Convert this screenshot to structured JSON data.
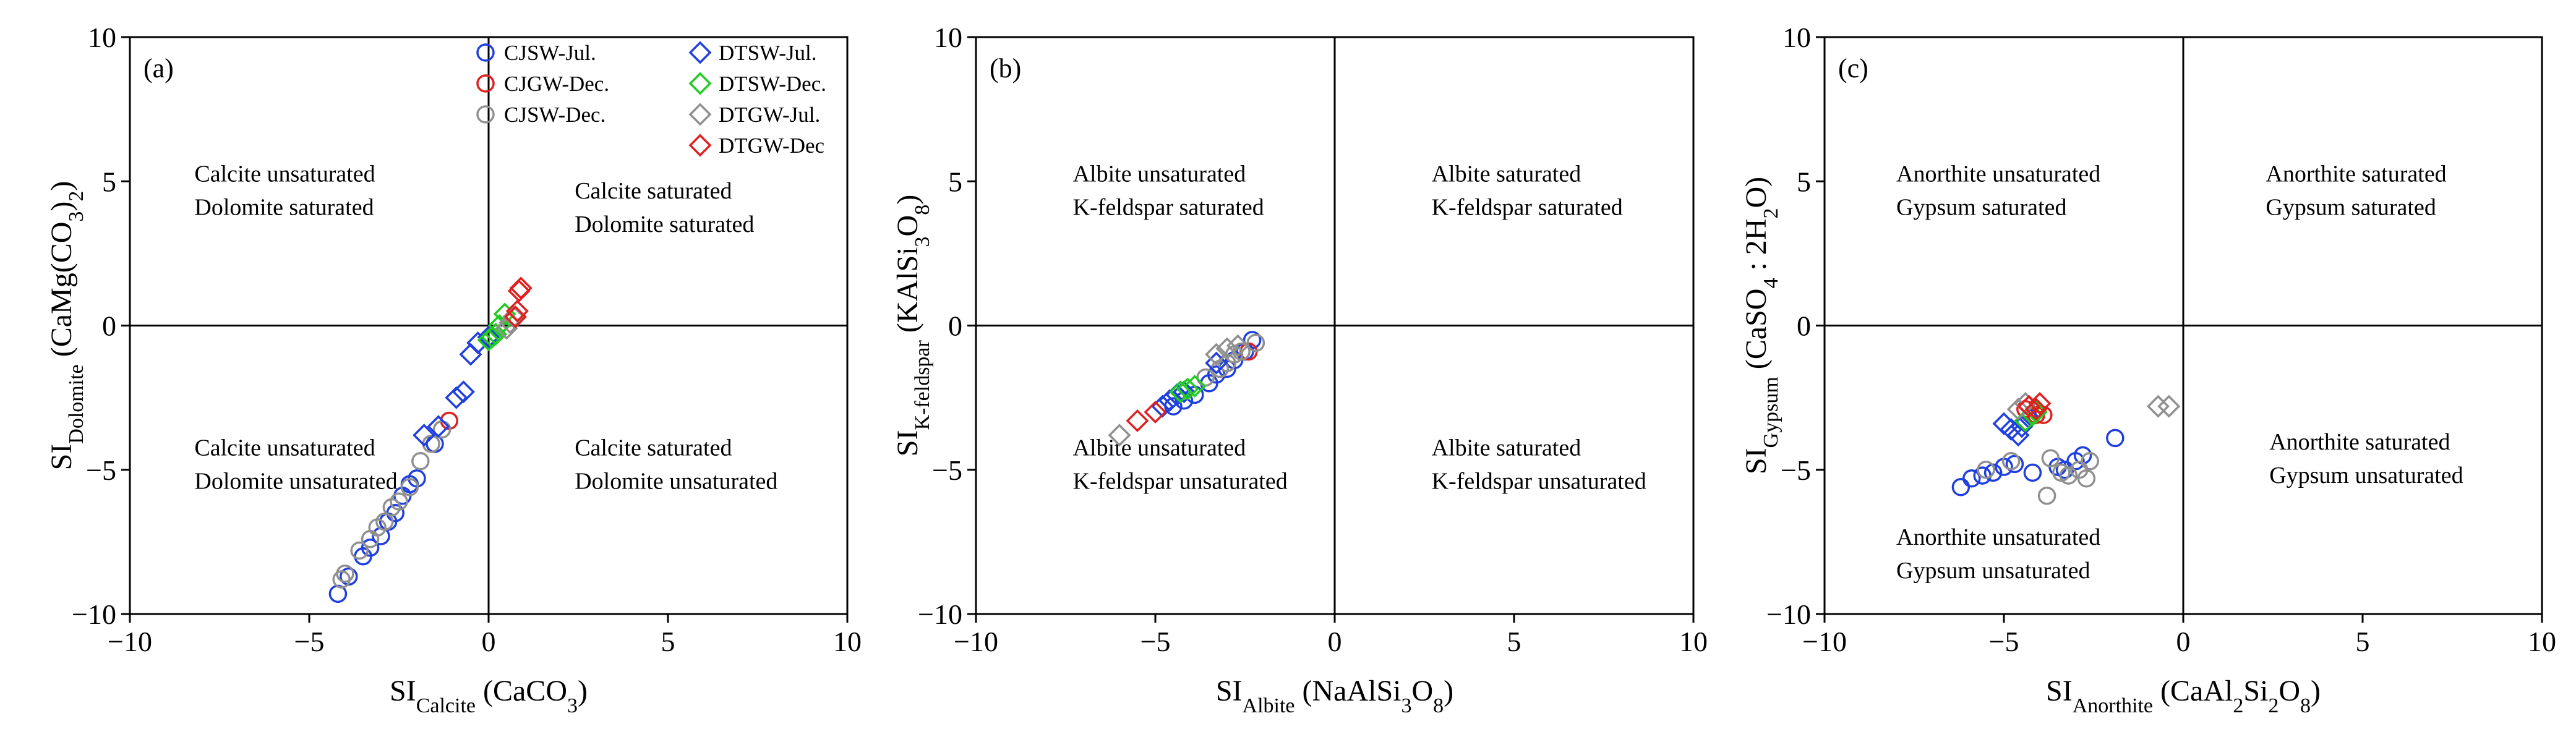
{
  "legend": [
    {
      "name": "CJSW-Jul.",
      "marker": "circle",
      "color": "#1f3fe0"
    },
    {
      "name": "CJGW-Dec.",
      "marker": "circle",
      "color": "#e01f1f"
    },
    {
      "name": "CJSW-Dec.",
      "marker": "circle",
      "color": "#909090"
    },
    {
      "name": "DTSW-Jul.",
      "marker": "diamond",
      "color": "#1f3fe0"
    },
    {
      "name": "DTSW-Dec.",
      "marker": "diamond",
      "color": "#20cc20"
    },
    {
      "name": "DTGW-Jul.",
      "marker": "diamond",
      "color": "#909090"
    },
    {
      "name": "DTGW-Dec",
      "marker": "diamond",
      "color": "#e01f1f"
    }
  ],
  "chart_data": [
    {
      "type": "scatter",
      "panel_label": "(a)",
      "xlabel": {
        "base": "SI",
        "sub": "Calcite",
        "rest": " (CaCO",
        "sub2": "3",
        "tail": ")"
      },
      "ylabel": {
        "base": "SI",
        "sub": "Dolomite",
        "rest": " (CaMg(CO",
        "sub2": "3",
        "mid": ")",
        "sub3": "2",
        "tail": ")"
      },
      "xlim": [
        -10,
        10
      ],
      "ylim": [
        -10,
        10
      ],
      "xticks": [
        "−10",
        "−5",
        "0",
        "5",
        "10"
      ],
      "yticks": [
        "−10",
        "−5",
        "0",
        "5",
        "10"
      ],
      "quadrants": {
        "top_left": [
          "Calcite unsaturated",
          "Dolomite saturated"
        ],
        "top_right": [
          "Calcite saturated",
          "Dolomite saturated"
        ],
        "bottom_left": [
          "Calcite unsaturated",
          "Dolomite unsaturated"
        ],
        "bottom_right": [
          "Calcite saturated",
          "Dolomite unsaturated"
        ]
      },
      "series": [
        {
          "name": "CJSW-Jul.",
          "points": [
            [
              -4.2,
              -9.3
            ],
            [
              -3.9,
              -8.7
            ],
            [
              -3.5,
              -8.0
            ],
            [
              -3.3,
              -7.7
            ],
            [
              -3.0,
              -7.3
            ],
            [
              -2.8,
              -6.8
            ],
            [
              -2.6,
              -6.5
            ],
            [
              -2.4,
              -5.9
            ],
            [
              -2.2,
              -5.5
            ],
            [
              -2.0,
              -5.3
            ],
            [
              -1.5,
              -4.1
            ]
          ]
        },
        {
          "name": "CJGW-Dec.",
          "points": [
            [
              -1.1,
              -3.3
            ]
          ]
        },
        {
          "name": "CJSW-Dec.",
          "points": [
            [
              -4.1,
              -8.8
            ],
            [
              -4.0,
              -8.6
            ],
            [
              -3.6,
              -7.8
            ],
            [
              -3.3,
              -7.4
            ],
            [
              -3.1,
              -7.0
            ],
            [
              -2.9,
              -6.8
            ],
            [
              -2.7,
              -6.3
            ],
            [
              -2.5,
              -6.1
            ],
            [
              -2.2,
              -5.6
            ],
            [
              -1.9,
              -4.7
            ],
            [
              -1.6,
              -4.1
            ],
            [
              -1.3,
              -3.6
            ]
          ]
        },
        {
          "name": "DTSW-Jul.",
          "points": [
            [
              -1.8,
              -3.8
            ],
            [
              -1.4,
              -3.5
            ],
            [
              -0.9,
              -2.5
            ],
            [
              -0.7,
              -2.3
            ],
            [
              -0.5,
              -1.0
            ],
            [
              -0.3,
              -0.6
            ],
            [
              0.0,
              -0.4
            ]
          ]
        },
        {
          "name": "DTSW-Dec.",
          "points": [
            [
              0.0,
              -0.5
            ],
            [
              0.1,
              -0.4
            ],
            [
              0.2,
              -0.3
            ],
            [
              0.3,
              0.0
            ],
            [
              0.45,
              0.4
            ]
          ]
        },
        {
          "name": "DTGW-Jul.",
          "points": [
            [
              0.5,
              -0.1
            ],
            [
              0.6,
              0.1
            ],
            [
              0.7,
              0.3
            ]
          ]
        },
        {
          "name": "DTGW-Dec",
          "points": [
            [
              0.75,
              0.3
            ],
            [
              0.8,
              0.5
            ],
            [
              0.85,
              1.2
            ],
            [
              0.9,
              1.3
            ]
          ]
        }
      ]
    },
    {
      "type": "scatter",
      "panel_label": "(b)",
      "xlabel": {
        "base": "SI",
        "sub": "Albite",
        "rest": " (NaAlSi",
        "sub2": "3",
        "mid": "O",
        "sub3": "8",
        "tail": ")"
      },
      "ylabel": {
        "base": "SI",
        "sub": "K-feldspar",
        "rest": " (KAlSi",
        "sub2": "3",
        "mid": "O",
        "sub3": "8",
        "tail": ")"
      },
      "xlim": [
        -10,
        10
      ],
      "ylim": [
        -10,
        10
      ],
      "xticks": [
        "−10",
        "−5",
        "0",
        "5",
        "10"
      ],
      "yticks": [
        "−10",
        "−5",
        "0",
        "5",
        "10"
      ],
      "quadrants": {
        "top_left": [
          "Albite unsaturated",
          "K-feldspar saturated"
        ],
        "top_right": [
          "Albite saturated",
          "K-feldspar saturated"
        ],
        "bottom_left": [
          "Albite unsaturated",
          "K-feldspar unsaturated"
        ],
        "bottom_right": [
          "Albite saturated",
          "K-feldspar unsaturated"
        ]
      },
      "series": [
        {
          "name": "CJSW-Jul.",
          "points": [
            [
              -4.5,
              -2.8
            ],
            [
              -4.2,
              -2.6
            ],
            [
              -3.9,
              -2.4
            ],
            [
              -3.5,
              -2.0
            ],
            [
              -3.3,
              -1.7
            ],
            [
              -3.0,
              -1.5
            ],
            [
              -2.8,
              -1.2
            ],
            [
              -2.5,
              -0.9
            ],
            [
              -2.3,
              -0.5
            ]
          ]
        },
        {
          "name": "CJGW-Dec.",
          "points": [
            [
              -2.4,
              -0.9
            ]
          ]
        },
        {
          "name": "CJSW-Dec.",
          "points": [
            [
              -3.6,
              -1.8
            ],
            [
              -3.2,
              -1.5
            ],
            [
              -3.0,
              -1.3
            ],
            [
              -2.8,
              -1.0
            ],
            [
              -2.6,
              -0.9
            ],
            [
              -2.2,
              -0.6
            ]
          ]
        },
        {
          "name": "DTSW-Jul.",
          "points": [
            [
              -4.8,
              -2.8
            ],
            [
              -4.6,
              -2.6
            ],
            [
              -4.4,
              -2.4
            ],
            [
              -4.2,
              -2.3
            ],
            [
              -3.3,
              -1.3
            ]
          ]
        },
        {
          "name": "DTSW-Dec.",
          "points": [
            [
              -4.3,
              -2.3
            ],
            [
              -4.1,
              -2.2
            ],
            [
              -3.9,
              -2.1
            ]
          ]
        },
        {
          "name": "DTGW-Jul.",
          "points": [
            [
              -6.0,
              -3.8
            ],
            [
              -3.3,
              -1.0
            ],
            [
              -3.0,
              -0.8
            ],
            [
              -2.7,
              -0.7
            ]
          ]
        },
        {
          "name": "DTGW-Dec",
          "points": [
            [
              -5.5,
              -3.3
            ],
            [
              -5.0,
              -3.0
            ]
          ]
        }
      ]
    },
    {
      "type": "scatter",
      "panel_label": "(c)",
      "xlabel": {
        "base": "SI",
        "sub": "Anorthite",
        "rest": " (CaAl",
        "sub2": "2",
        "mid": "Si",
        "sub3": "2",
        "mid2": "O",
        "sub4": "8",
        "tail": ")"
      },
      "ylabel": {
        "base": "SI",
        "sub": "Gypsum",
        "rest": " (CaSO",
        "sub2": "4",
        "mid": " : 2H",
        "sub3": "2",
        "tail": "O)"
      },
      "xlim": [
        -10,
        10
      ],
      "ylim": [
        -10,
        10
      ],
      "xticks": [
        "−10",
        "−5",
        "0",
        "5",
        "10"
      ],
      "yticks": [
        "−10",
        "−5",
        "0",
        "5",
        "10"
      ],
      "quadrants": {
        "top_left": [
          "Anorthite unsaturated",
          "Gypsum saturated"
        ],
        "top_right": [
          "Anorthite saturated",
          "Gypsum saturated"
        ],
        "bottom_left": [
          "Anorthite unsaturated",
          "Gypsum unsaturated"
        ],
        "bottom_right": [
          "Anorthite saturated",
          "Gypsum unsaturated"
        ]
      },
      "series": [
        {
          "name": "CJSW-Jul.",
          "points": [
            [
              -6.2,
              -5.6
            ],
            [
              -5.9,
              -5.3
            ],
            [
              -5.6,
              -5.2
            ],
            [
              -5.3,
              -5.1
            ],
            [
              -5.0,
              -4.9
            ],
            [
              -4.7,
              -4.8
            ],
            [
              -4.2,
              -5.1
            ],
            [
              -3.5,
              -4.9
            ],
            [
              -3.3,
              -5.0
            ],
            [
              -3.0,
              -4.7
            ],
            [
              -2.8,
              -4.5
            ],
            [
              -1.9,
              -3.9
            ]
          ]
        },
        {
          "name": "CJGW-Dec.",
          "points": [
            [
              -4.4,
              -2.9
            ],
            [
              -4.1,
              -3.1
            ],
            [
              -3.9,
              -3.1
            ]
          ]
        },
        {
          "name": "CJSW-Dec.",
          "points": [
            [
              -5.5,
              -5.0
            ],
            [
              -4.8,
              -4.7
            ],
            [
              -3.8,
              -5.9
            ],
            [
              -3.7,
              -4.6
            ],
            [
              -3.4,
              -5.1
            ],
            [
              -3.2,
              -5.2
            ],
            [
              -2.9,
              -5.0
            ],
            [
              -2.7,
              -5.3
            ],
            [
              -2.6,
              -4.7
            ]
          ]
        },
        {
          "name": "DTSW-Jul.",
          "points": [
            [
              -5.0,
              -3.4
            ],
            [
              -4.8,
              -3.6
            ],
            [
              -4.6,
              -3.8
            ],
            [
              -4.5,
              -3.5
            ],
            [
              -4.3,
              -3.2
            ]
          ]
        },
        {
          "name": "DTSW-Dec.",
          "points": [
            [
              -4.4,
              -3.3
            ],
            [
              -4.2,
              -3.1
            ],
            [
              -4.1,
              -3.0
            ]
          ]
        },
        {
          "name": "DTGW-Jul.",
          "points": [
            [
              -4.6,
              -2.9
            ],
            [
              -4.4,
              -2.7
            ],
            [
              -0.7,
              -2.8
            ],
            [
              -0.4,
              -2.8
            ]
          ]
        },
        {
          "name": "DTGW-Dec",
          "points": [
            [
              -4.3,
              -2.8
            ],
            [
              -4.1,
              -2.9
            ],
            [
              -4.0,
              -2.7
            ]
          ]
        }
      ]
    }
  ]
}
